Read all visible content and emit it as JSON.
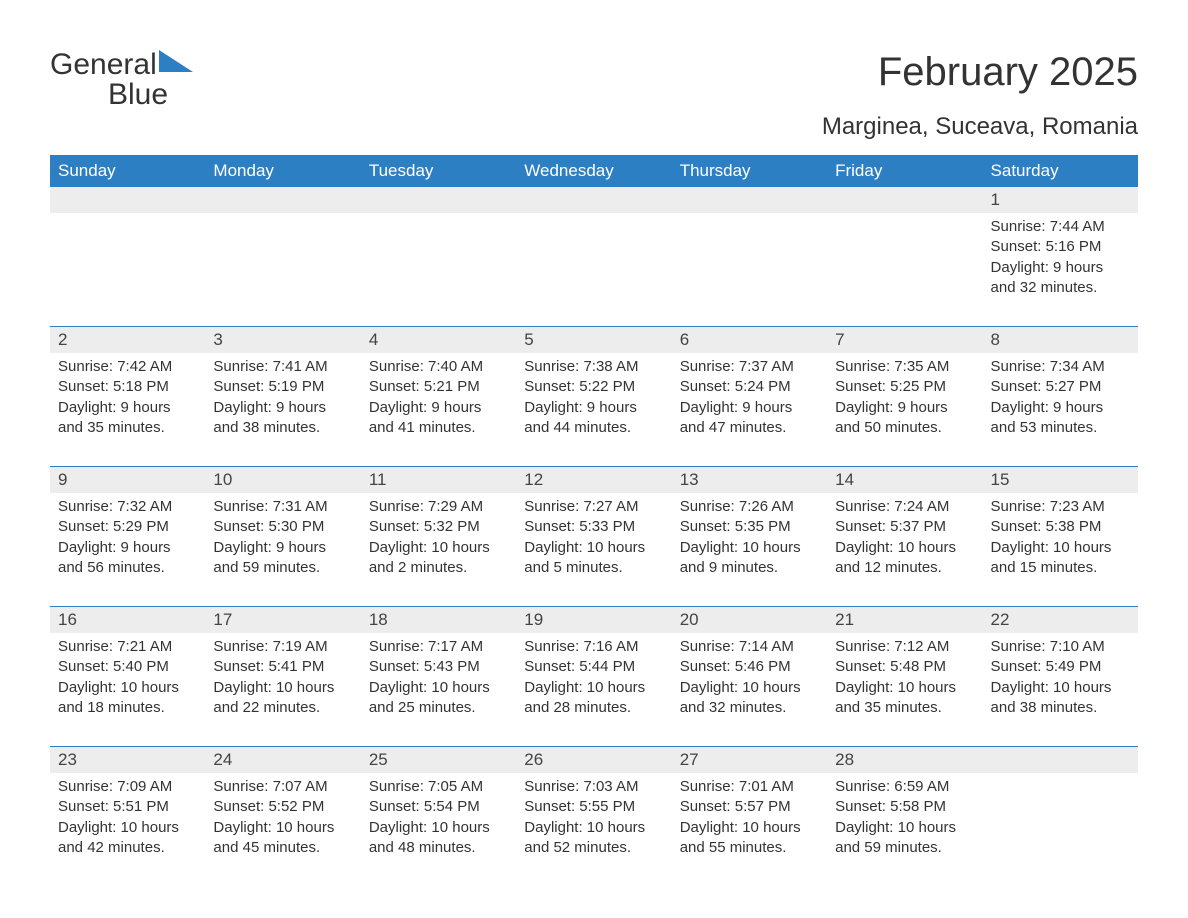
{
  "logo": {
    "word1": "General",
    "word2": "Blue"
  },
  "title": "February 2025",
  "location": "Marginea, Suceava, Romania",
  "colors": {
    "header_bg": "#2d7fc3",
    "header_text": "#ffffff",
    "daynum_bg": "#ededed",
    "body_text": "#333333",
    "rule": "#2d7fc3",
    "page_bg": "#ffffff",
    "logo_blue": "#2d7fc3"
  },
  "typography": {
    "title_fontsize": 40,
    "location_fontsize": 24,
    "header_fontsize": 17,
    "daynum_fontsize": 17,
    "detail_fontsize": 15,
    "logo_fontsize": 30
  },
  "day_headers": [
    "Sunday",
    "Monday",
    "Tuesday",
    "Wednesday",
    "Thursday",
    "Friday",
    "Saturday"
  ],
  "weeks": [
    {
      "days": [
        null,
        null,
        null,
        null,
        null,
        null,
        {
          "n": "1",
          "sunrise": "Sunrise: 7:44 AM",
          "sunset": "Sunset: 5:16 PM",
          "daylight": "Daylight: 9 hours and 32 minutes."
        }
      ]
    },
    {
      "days": [
        {
          "n": "2",
          "sunrise": "Sunrise: 7:42 AM",
          "sunset": "Sunset: 5:18 PM",
          "daylight": "Daylight: 9 hours and 35 minutes."
        },
        {
          "n": "3",
          "sunrise": "Sunrise: 7:41 AM",
          "sunset": "Sunset: 5:19 PM",
          "daylight": "Daylight: 9 hours and 38 minutes."
        },
        {
          "n": "4",
          "sunrise": "Sunrise: 7:40 AM",
          "sunset": "Sunset: 5:21 PM",
          "daylight": "Daylight: 9 hours and 41 minutes."
        },
        {
          "n": "5",
          "sunrise": "Sunrise: 7:38 AM",
          "sunset": "Sunset: 5:22 PM",
          "daylight": "Daylight: 9 hours and 44 minutes."
        },
        {
          "n": "6",
          "sunrise": "Sunrise: 7:37 AM",
          "sunset": "Sunset: 5:24 PM",
          "daylight": "Daylight: 9 hours and 47 minutes."
        },
        {
          "n": "7",
          "sunrise": "Sunrise: 7:35 AM",
          "sunset": "Sunset: 5:25 PM",
          "daylight": "Daylight: 9 hours and 50 minutes."
        },
        {
          "n": "8",
          "sunrise": "Sunrise: 7:34 AM",
          "sunset": "Sunset: 5:27 PM",
          "daylight": "Daylight: 9 hours and 53 minutes."
        }
      ]
    },
    {
      "days": [
        {
          "n": "9",
          "sunrise": "Sunrise: 7:32 AM",
          "sunset": "Sunset: 5:29 PM",
          "daylight": "Daylight: 9 hours and 56 minutes."
        },
        {
          "n": "10",
          "sunrise": "Sunrise: 7:31 AM",
          "sunset": "Sunset: 5:30 PM",
          "daylight": "Daylight: 9 hours and 59 minutes."
        },
        {
          "n": "11",
          "sunrise": "Sunrise: 7:29 AM",
          "sunset": "Sunset: 5:32 PM",
          "daylight": "Daylight: 10 hours and 2 minutes."
        },
        {
          "n": "12",
          "sunrise": "Sunrise: 7:27 AM",
          "sunset": "Sunset: 5:33 PM",
          "daylight": "Daylight: 10 hours and 5 minutes."
        },
        {
          "n": "13",
          "sunrise": "Sunrise: 7:26 AM",
          "sunset": "Sunset: 5:35 PM",
          "daylight": "Daylight: 10 hours and 9 minutes."
        },
        {
          "n": "14",
          "sunrise": "Sunrise: 7:24 AM",
          "sunset": "Sunset: 5:37 PM",
          "daylight": "Daylight: 10 hours and 12 minutes."
        },
        {
          "n": "15",
          "sunrise": "Sunrise: 7:23 AM",
          "sunset": "Sunset: 5:38 PM",
          "daylight": "Daylight: 10 hours and 15 minutes."
        }
      ]
    },
    {
      "days": [
        {
          "n": "16",
          "sunrise": "Sunrise: 7:21 AM",
          "sunset": "Sunset: 5:40 PM",
          "daylight": "Daylight: 10 hours and 18 minutes."
        },
        {
          "n": "17",
          "sunrise": "Sunrise: 7:19 AM",
          "sunset": "Sunset: 5:41 PM",
          "daylight": "Daylight: 10 hours and 22 minutes."
        },
        {
          "n": "18",
          "sunrise": "Sunrise: 7:17 AM",
          "sunset": "Sunset: 5:43 PM",
          "daylight": "Daylight: 10 hours and 25 minutes."
        },
        {
          "n": "19",
          "sunrise": "Sunrise: 7:16 AM",
          "sunset": "Sunset: 5:44 PM",
          "daylight": "Daylight: 10 hours and 28 minutes."
        },
        {
          "n": "20",
          "sunrise": "Sunrise: 7:14 AM",
          "sunset": "Sunset: 5:46 PM",
          "daylight": "Daylight: 10 hours and 32 minutes."
        },
        {
          "n": "21",
          "sunrise": "Sunrise: 7:12 AM",
          "sunset": "Sunset: 5:48 PM",
          "daylight": "Daylight: 10 hours and 35 minutes."
        },
        {
          "n": "22",
          "sunrise": "Sunrise: 7:10 AM",
          "sunset": "Sunset: 5:49 PM",
          "daylight": "Daylight: 10 hours and 38 minutes."
        }
      ]
    },
    {
      "days": [
        {
          "n": "23",
          "sunrise": "Sunrise: 7:09 AM",
          "sunset": "Sunset: 5:51 PM",
          "daylight": "Daylight: 10 hours and 42 minutes."
        },
        {
          "n": "24",
          "sunrise": "Sunrise: 7:07 AM",
          "sunset": "Sunset: 5:52 PM",
          "daylight": "Daylight: 10 hours and 45 minutes."
        },
        {
          "n": "25",
          "sunrise": "Sunrise: 7:05 AM",
          "sunset": "Sunset: 5:54 PM",
          "daylight": "Daylight: 10 hours and 48 minutes."
        },
        {
          "n": "26",
          "sunrise": "Sunrise: 7:03 AM",
          "sunset": "Sunset: 5:55 PM",
          "daylight": "Daylight: 10 hours and 52 minutes."
        },
        {
          "n": "27",
          "sunrise": "Sunrise: 7:01 AM",
          "sunset": "Sunset: 5:57 PM",
          "daylight": "Daylight: 10 hours and 55 minutes."
        },
        {
          "n": "28",
          "sunrise": "Sunrise: 6:59 AM",
          "sunset": "Sunset: 5:58 PM",
          "daylight": "Daylight: 10 hours and 59 minutes."
        },
        null
      ]
    }
  ]
}
